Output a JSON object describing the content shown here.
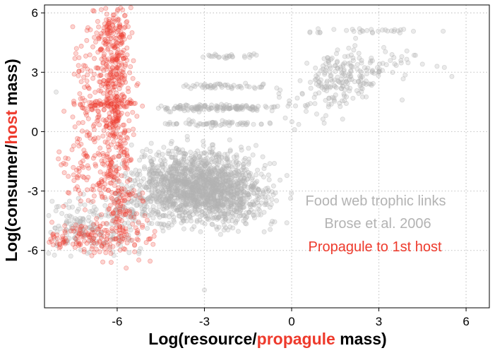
{
  "chart_data": {
    "type": "scatter",
    "title": "",
    "xlabel_parts": [
      "Log(resource/",
      "propagule",
      " mass)"
    ],
    "ylabel_parts": [
      "Log(consumer/",
      "host",
      " mass)"
    ],
    "xlim": [
      -8.5,
      6.8
    ],
    "ylim": [
      -8.9,
      6.4
    ],
    "xticks": [
      -6,
      -3,
      0,
      3,
      6
    ],
    "yticks": [
      -6,
      -3,
      0,
      3,
      6
    ],
    "grid": "dotted",
    "colors": {
      "foodweb": "#b3b3b3",
      "parasite": "#ee3a2c",
      "frame": "#000000",
      "grid": "#c8c8c8"
    },
    "series": [
      {
        "name": "Food web trophic links",
        "color": "#b3b3b3",
        "clusters": [
          {
            "cx": -3.3,
            "cy": -2.7,
            "sx": 1.0,
            "sy": 0.9,
            "n": 1300
          },
          {
            "cx": -2.2,
            "cy": -3.2,
            "sx": 0.9,
            "sy": 0.8,
            "n": 350
          },
          {
            "cx": -2.6,
            "cy": 1.2,
            "sx": 1.0,
            "sy": 0.08,
            "n": 140
          },
          {
            "cx": -2.6,
            "cy": 0.4,
            "sx": 1.0,
            "sy": 0.07,
            "n": 60
          },
          {
            "cx": -2.2,
            "cy": 2.3,
            "sx": 0.7,
            "sy": 0.07,
            "n": 50
          },
          {
            "cx": -2.0,
            "cy": 3.8,
            "sx": 0.8,
            "sy": 0.06,
            "n": 25
          },
          {
            "cx": 1.8,
            "cy": 2.8,
            "sx": 0.6,
            "sy": 0.7,
            "n": 160
          },
          {
            "cx": 0.8,
            "cy": 1.5,
            "sx": 0.7,
            "sy": 0.6,
            "n": 40
          },
          {
            "cx": 2.6,
            "cy": 5.1,
            "sx": 1.2,
            "sy": 0.06,
            "n": 30
          },
          {
            "cx": 3.4,
            "cy": 3.4,
            "sx": 0.9,
            "sy": 0.6,
            "n": 40
          },
          {
            "cx": -7.0,
            "cy": -4.8,
            "sx": 0.7,
            "sy": 0.7,
            "n": 150
          },
          {
            "cx": -5.5,
            "cy": -4.0,
            "sx": 0.4,
            "sy": 0.9,
            "n": 80
          }
        ],
        "extra_points": [
          [
            -8.1,
            2.0
          ],
          [
            -3.0,
            -8.0
          ],
          [
            3.8,
            1.6
          ],
          [
            5.0,
            3.3
          ],
          [
            0.1,
            0.1
          ]
        ]
      },
      {
        "name": "Propagule to 1st host",
        "color": "#ee3a2c",
        "clusters": [
          {
            "cx": -6.1,
            "cy": 3.0,
            "sx": 0.3,
            "sy": 1.8,
            "n": 260
          },
          {
            "cx": -6.0,
            "cy": -1.5,
            "sx": 0.3,
            "sy": 2.3,
            "n": 260
          },
          {
            "cx": -7.0,
            "cy": 1.5,
            "sx": 0.35,
            "sy": 2.3,
            "n": 110
          },
          {
            "cx": -6.4,
            "cy": 1.4,
            "sx": 0.5,
            "sy": 0.1,
            "n": 60
          },
          {
            "cx": -7.0,
            "cy": -5.4,
            "sx": 0.7,
            "sy": 0.35,
            "n": 120
          },
          {
            "cx": -7.1,
            "cy": -2.2,
            "sx": 0.5,
            "sy": 0.6,
            "n": 50
          },
          {
            "cx": -5.4,
            "cy": -4.5,
            "sx": 0.4,
            "sy": 0.9,
            "n": 40
          },
          {
            "cx": -6.1,
            "cy": 5.0,
            "sx": 0.3,
            "sy": 0.5,
            "n": 60
          }
        ],
        "extra_points": [
          [
            -7.4,
            4.2
          ],
          [
            -5.0,
            -5.6
          ],
          [
            -5.3,
            -5.1
          ]
        ]
      }
    ],
    "annotations": [
      "Food web trophic links",
      "Brose et al. 2006",
      "Propagule to 1st host"
    ]
  }
}
